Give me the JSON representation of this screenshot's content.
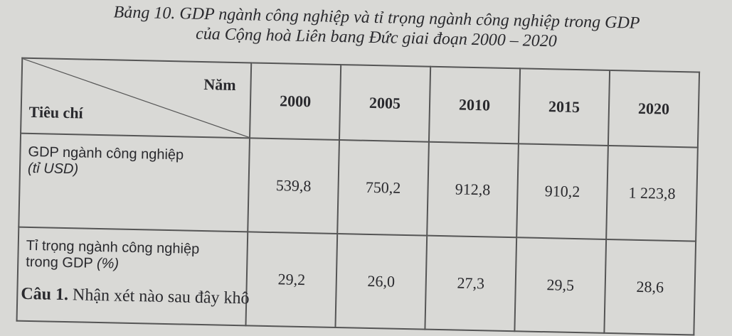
{
  "title": {
    "line1": "Bảng 10. GDP ngành công nghiệp và tỉ trọng ngành công nghiệp trong GDP",
    "line2": "của Cộng hoà Liên bang Đức giai đoạn 2000 – 2020"
  },
  "table": {
    "header_year_label": "Năm",
    "header_criteria_label": "Tiêu chí",
    "years": [
      "2000",
      "2005",
      "2010",
      "2015",
      "2020"
    ],
    "rows": [
      {
        "label": "GDP ngành công nghiệp",
        "unit": "(tỉ USD)",
        "values": [
          "539,8",
          "750,2",
          "912,8",
          "910,2",
          "1 223,8"
        ]
      },
      {
        "label": "Tỉ trọng ngành công nghiệp",
        "label2": "trong GDP",
        "unit": "(%)",
        "values": [
          "29,2",
          "26,0",
          "27,3",
          "29,5",
          "28,6"
        ]
      }
    ]
  },
  "question": {
    "number": "Câu 1.",
    "text": "Nhận xét nào sau đây khô"
  }
}
